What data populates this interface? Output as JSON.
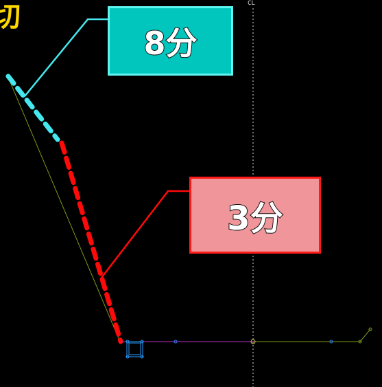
{
  "callout_upper": {
    "text": "8分",
    "fill": "#00c6bd",
    "border": "#5ff4f0"
  },
  "callout_lower": {
    "text": "3分",
    "fill": "#f0969a",
    "border": "#ff1a1a"
  },
  "centerline_label": "CL",
  "corner_glyph": "切",
  "colors": {
    "background": "#000000",
    "upper_slope": "#44e8ee",
    "lower_slope": "#ff0a0a",
    "leader_upper": "#44e8ee",
    "leader_lower": "#ff0a0a",
    "ground_line": "#b030c0",
    "centerline": "#e0e0e0",
    "guide_line": "#7a9a18",
    "drain_outline": "#2a9cff"
  }
}
